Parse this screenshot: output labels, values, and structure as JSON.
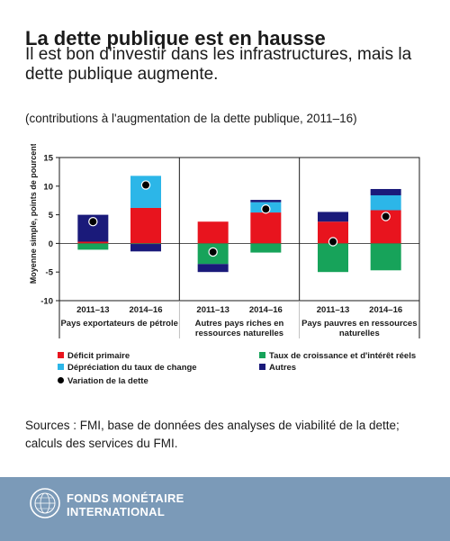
{
  "header": {
    "title": "La dette publique est en hausse",
    "subtitle": "Il est bon d'investir dans les infrastructures, mais la dette publique augmente.",
    "note": "(contributions à l'augmentation de la dette publique, 2011–16)"
  },
  "sources": "Sources : FMI, base de données des analyses de viabilité de la dette; calculs des services du FMI.",
  "footer": {
    "org_line1": "FONDS MONÉTAIRE",
    "org_line2": "INTERNATIONAL"
  },
  "colors": {
    "deficit": "#e8141e",
    "croissance": "#17a35a",
    "change": "#2cb6e8",
    "autres": "#1a1a7a",
    "variation": "#000000",
    "footer_bg": "#7b9ab8"
  },
  "chart_data": {
    "type": "bar",
    "stacked": true,
    "ylabel": "Moyenne simple, points de pourcentage",
    "ylim": [
      -10,
      15
    ],
    "yticks": [
      -10,
      -5,
      0,
      5,
      10,
      15
    ],
    "groups": [
      {
        "label": "Pays exportateurs de pétrole",
        "categories": [
          "2011–13",
          "2014–16"
        ]
      },
      {
        "label": "Autres pays riches en ressources naturelles",
        "categories": [
          "2011–13",
          "2014–16"
        ]
      },
      {
        "label": "Pays pauvres en ressources naturelles",
        "categories": [
          "2011–13",
          "2014–16"
        ]
      }
    ],
    "series": [
      {
        "name": "Déficit primaire",
        "values": [
          0.3,
          6.2,
          3.8,
          5.4,
          3.8,
          5.8
        ]
      },
      {
        "name": "Taux de croissance et d'intérêt réels",
        "values": [
          -1.1,
          -0.1,
          -3.6,
          -1.6,
          -5.0,
          -4.7
        ]
      },
      {
        "name": "Dépréciation du taux de change",
        "values": [
          0.0,
          5.6,
          0.0,
          1.8,
          0.0,
          2.6
        ]
      },
      {
        "name": "Autres",
        "values": [
          4.7,
          -1.3,
          -1.4,
          0.4,
          1.7,
          1.1
        ]
      }
    ],
    "markers": {
      "name": "Variation de la dette",
      "values": [
        3.8,
        10.2,
        -1.5,
        6.0,
        0.3,
        4.7
      ]
    }
  }
}
